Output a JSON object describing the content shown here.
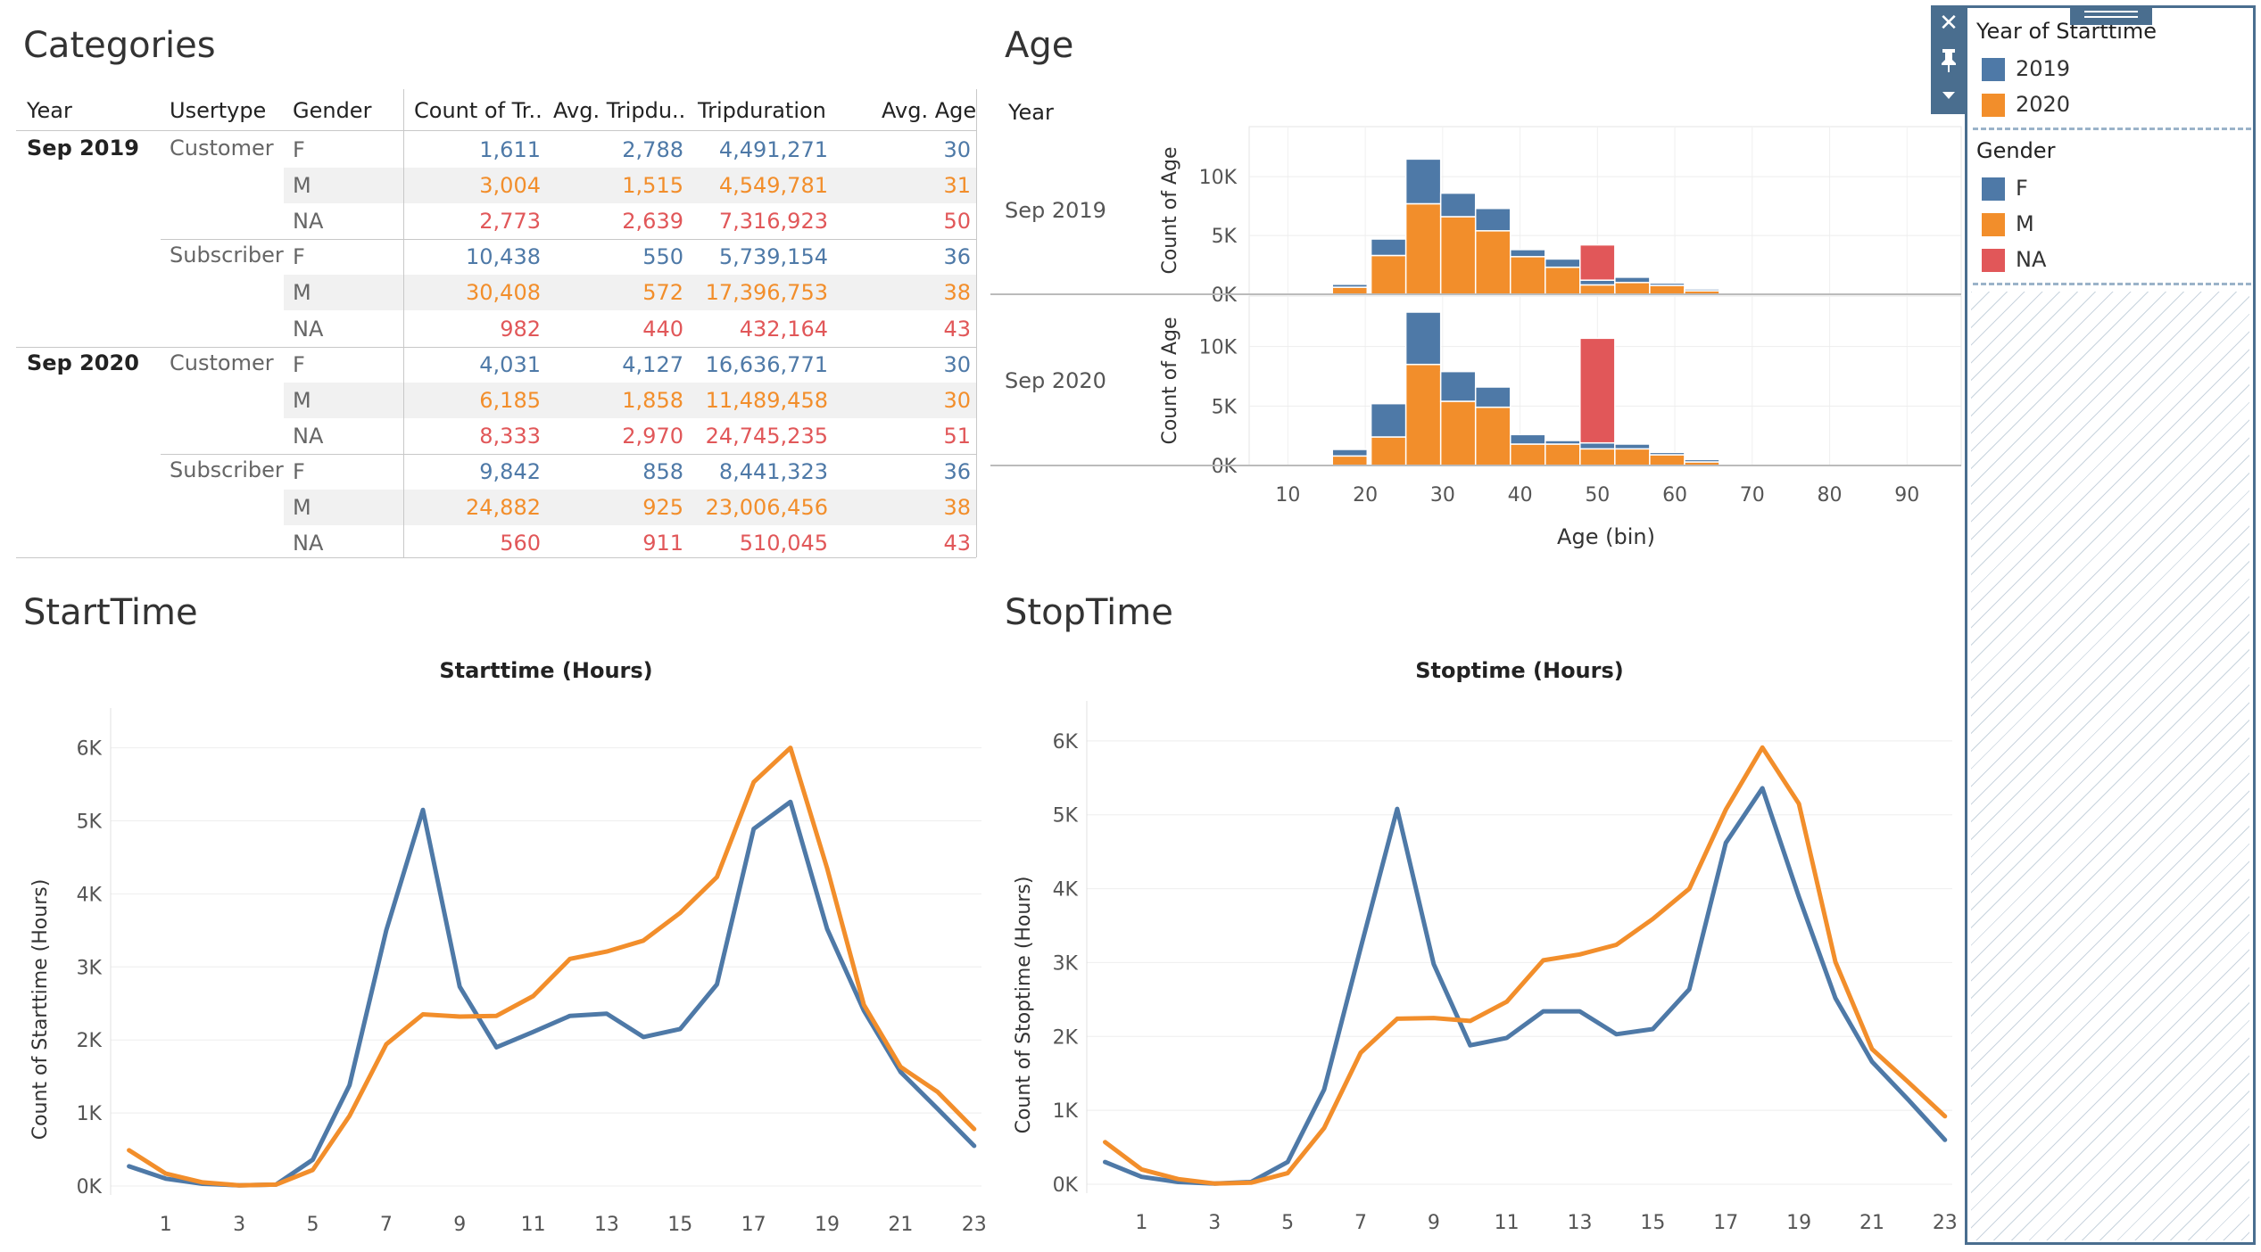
{
  "sections": {
    "categories_title": "Categories",
    "age_title": "Age",
    "starttime_title": "StartTime",
    "stoptime_title": "StopTime"
  },
  "table": {
    "headers": {
      "year": "Year",
      "usertype": "Usertype",
      "gender": "Gender",
      "count": "Count of Tr..",
      "avg_trip": "Avg. Tripdu..",
      "tripduration": "Tripduration",
      "avg_age": "Avg. Age"
    },
    "years": [
      "Sep 2019",
      "Sep 2020"
    ],
    "usertypes": [
      "Customer",
      "Subscriber",
      "Customer",
      "Subscriber"
    ],
    "rows": [
      {
        "gender": "F",
        "count": "1,611",
        "avg_trip": "2,788",
        "trip": "4,491,271",
        "age": "30",
        "color": "#4e79a7"
      },
      {
        "gender": "M",
        "count": "3,004",
        "avg_trip": "1,515",
        "trip": "4,549,781",
        "age": "31",
        "color": "#f28e2b"
      },
      {
        "gender": "NA",
        "count": "2,773",
        "avg_trip": "2,639",
        "trip": "7,316,923",
        "age": "50",
        "color": "#e15759"
      },
      {
        "gender": "F",
        "count": "10,438",
        "avg_trip": "550",
        "trip": "5,739,154",
        "age": "36",
        "color": "#4e79a7"
      },
      {
        "gender": "M",
        "count": "30,408",
        "avg_trip": "572",
        "trip": "17,396,753",
        "age": "38",
        "color": "#f28e2b"
      },
      {
        "gender": "NA",
        "count": "982",
        "avg_trip": "440",
        "trip": "432,164",
        "age": "43",
        "color": "#e15759"
      },
      {
        "gender": "F",
        "count": "4,031",
        "avg_trip": "4,127",
        "trip": "16,636,771",
        "age": "30",
        "color": "#4e79a7"
      },
      {
        "gender": "M",
        "count": "6,185",
        "avg_trip": "1,858",
        "trip": "11,489,458",
        "age": "30",
        "color": "#f28e2b"
      },
      {
        "gender": "NA",
        "count": "8,333",
        "avg_trip": "2,970",
        "trip": "24,745,235",
        "age": "51",
        "color": "#e15759"
      },
      {
        "gender": "F",
        "count": "9,842",
        "avg_trip": "858",
        "trip": "8,441,323",
        "age": "36",
        "color": "#4e79a7"
      },
      {
        "gender": "M",
        "count": "24,882",
        "avg_trip": "925",
        "trip": "23,006,456",
        "age": "38",
        "color": "#f28e2b"
      },
      {
        "gender": "NA",
        "count": "560",
        "avg_trip": "911",
        "trip": "510,045",
        "age": "43",
        "color": "#e15759"
      }
    ]
  },
  "legend": {
    "year_title": "Year of Starttime",
    "years": [
      {
        "label": "2019",
        "color": "#4e79a7"
      },
      {
        "label": "2020",
        "color": "#f28e2b"
      }
    ],
    "gender_title": "Gender",
    "genders": [
      {
        "label": "F",
        "color": "#4e79a7"
      },
      {
        "label": "M",
        "color": "#f28e2b"
      },
      {
        "label": "NA",
        "color": "#e15759"
      }
    ],
    "tools": {
      "close": "close-icon",
      "pin": "pin-icon",
      "menu": "dropdown-icon"
    }
  },
  "chart_data": [
    {
      "type": "bar",
      "name": "Age",
      "row_header": "Year",
      "rows": [
        "Sep 2019",
        "Sep 2020"
      ],
      "xlabel": "Age (bin)",
      "ylabel": "Count of Age",
      "x_ticks": [
        "10",
        "20",
        "30",
        "40",
        "50",
        "60",
        "70",
        "80",
        "90"
      ],
      "y_ticks": [
        "0K",
        "5K",
        "10K"
      ],
      "xlim": [
        5,
        97
      ],
      "ylim": [
        0,
        13500
      ],
      "stacked": true,
      "series_colors": {
        "F": "#4e79a7",
        "M": "#f28e2b",
        "NA": "#e15759"
      },
      "bins": [
        {
          "row": 0,
          "x": 18,
          "F": 250,
          "M": 600,
          "NA": 0
        },
        {
          "row": 0,
          "x": 23,
          "F": 1400,
          "M": 3300,
          "NA": 0
        },
        {
          "row": 0,
          "x": 27.5,
          "F": 3800,
          "M": 7700,
          "NA": 0
        },
        {
          "row": 0,
          "x": 32,
          "F": 2000,
          "M": 6600,
          "NA": 0
        },
        {
          "row": 0,
          "x": 36.5,
          "F": 1900,
          "M": 5400,
          "NA": 0
        },
        {
          "row": 0,
          "x": 41,
          "F": 600,
          "M": 3200,
          "NA": 0
        },
        {
          "row": 0,
          "x": 45.5,
          "F": 700,
          "M": 2300,
          "NA": 0
        },
        {
          "row": 0,
          "x": 50,
          "F": 400,
          "M": 800,
          "NA": 3000
        },
        {
          "row": 0,
          "x": 54.5,
          "F": 450,
          "M": 1000,
          "NA": 0
        },
        {
          "row": 0,
          "x": 59,
          "F": 200,
          "M": 750,
          "NA": 0
        },
        {
          "row": 0,
          "x": 63.5,
          "F": 150,
          "M": 300,
          "NA": 0
        },
        {
          "row": 1,
          "x": 18,
          "F": 550,
          "M": 800,
          "NA": 0
        },
        {
          "row": 1,
          "x": 23,
          "F": 2800,
          "M": 2400,
          "NA": 0
        },
        {
          "row": 1,
          "x": 27.5,
          "F": 4400,
          "M": 8500,
          "NA": 0
        },
        {
          "row": 1,
          "x": 32,
          "F": 2500,
          "M": 5400,
          "NA": 0
        },
        {
          "row": 1,
          "x": 36.5,
          "F": 1700,
          "M": 4900,
          "NA": 0
        },
        {
          "row": 1,
          "x": 41,
          "F": 800,
          "M": 1800,
          "NA": 0
        },
        {
          "row": 1,
          "x": 45.5,
          "F": 300,
          "M": 1800,
          "NA": 0
        },
        {
          "row": 1,
          "x": 50,
          "F": 500,
          "M": 1400,
          "NA": 8800
        },
        {
          "row": 1,
          "x": 54.5,
          "F": 400,
          "M": 1400,
          "NA": 0
        },
        {
          "row": 1,
          "x": 59,
          "F": 200,
          "M": 900,
          "NA": 0
        },
        {
          "row": 1,
          "x": 63.5,
          "F": 200,
          "M": 300,
          "NA": 0
        }
      ]
    },
    {
      "type": "line",
      "name": "StartTime",
      "title": "Starttime (Hours)",
      "ylabel": "Count of Starttime (Hours)",
      "x_ticks": [
        "1",
        "3",
        "5",
        "7",
        "9",
        "11",
        "13",
        "15",
        "17",
        "19",
        "21",
        "23"
      ],
      "y_ticks": [
        "0K",
        "1K",
        "2K",
        "3K",
        "4K",
        "5K",
        "6K"
      ],
      "x": [
        0,
        1,
        2,
        3,
        4,
        5,
        6,
        7,
        8,
        9,
        10,
        11,
        12,
        13,
        14,
        15,
        16,
        17,
        18,
        19,
        20,
        21,
        22,
        23
      ],
      "xlim": [
        -0.5,
        23.2
      ],
      "ylim": [
        0,
        6300
      ],
      "series": [
        {
          "color": "#4e79a7",
          "values": [
            270,
            100,
            30,
            10,
            20,
            360,
            1380,
            3500,
            5150,
            2730,
            1900,
            2110,
            2330,
            2360,
            2040,
            2150,
            2760,
            4890,
            5260,
            3520,
            2400,
            1560,
            1060,
            550
          ]
        },
        {
          "color": "#f28e2b",
          "values": [
            490,
            170,
            50,
            10,
            20,
            220,
            960,
            1940,
            2350,
            2320,
            2330,
            2600,
            3110,
            3210,
            3360,
            3740,
            4230,
            5530,
            6000,
            4350,
            2480,
            1630,
            1290,
            780
          ]
        }
      ]
    },
    {
      "type": "line",
      "name": "StopTime",
      "title": "Stoptime (Hours)",
      "ylabel": "Count of Stoptime (Hours)",
      "x_ticks": [
        "1",
        "3",
        "5",
        "7",
        "9",
        "11",
        "13",
        "15",
        "17",
        "19",
        "21",
        "23"
      ],
      "y_ticks": [
        "0K",
        "1K",
        "2K",
        "3K",
        "4K",
        "5K",
        "6K"
      ],
      "x": [
        0,
        1,
        2,
        3,
        4,
        5,
        6,
        7,
        8,
        9,
        10,
        11,
        12,
        13,
        14,
        15,
        16,
        17,
        18,
        19,
        20,
        21,
        22,
        23
      ],
      "xlim": [
        -0.5,
        23.2
      ],
      "ylim": [
        0,
        6300
      ],
      "series": [
        {
          "color": "#4e79a7",
          "values": [
            300,
            100,
            30,
            10,
            30,
            300,
            1280,
            3200,
            5080,
            2980,
            1880,
            1980,
            2340,
            2340,
            2030,
            2100,
            2640,
            4620,
            5360,
            3890,
            2520,
            1660,
            1140,
            600
          ]
        },
        {
          "color": "#f28e2b",
          "values": [
            570,
            200,
            70,
            10,
            20,
            150,
            760,
            1780,
            2240,
            2250,
            2210,
            2470,
            3030,
            3110,
            3240,
            3590,
            4000,
            5070,
            5910,
            5150,
            3010,
            1830,
            1380,
            920
          ]
        }
      ]
    }
  ]
}
